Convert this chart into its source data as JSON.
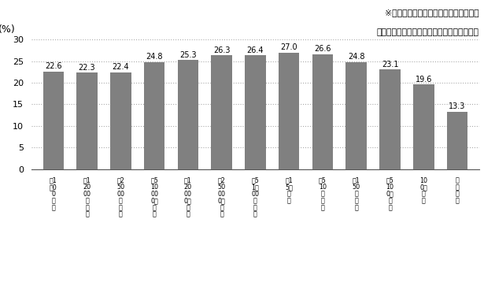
{
  "values": [
    22.6,
    22.3,
    22.4,
    24.8,
    25.3,
    26.3,
    26.4,
    27.0,
    26.6,
    24.8,
    23.1,
    19.6,
    13.3
  ],
  "bar_color": "#808080",
  "ylabel": "(%)",
  "ylim": [
    0,
    30
  ],
  "yticks": [
    0,
    5,
    10,
    15,
    20,
    25,
    30
  ],
  "annotation_line1": "※申告所得金額に対する法人税の割合を",
  "annotation_line2": "　資本金ごとに試算した国税庁資料より作成",
  "bg_color": "#ffffff",
  "grid_color": "#aaaaaa",
  "label_fontsize": 5.8,
  "value_fontsize": 7.0,
  "bar_width": 0.62
}
